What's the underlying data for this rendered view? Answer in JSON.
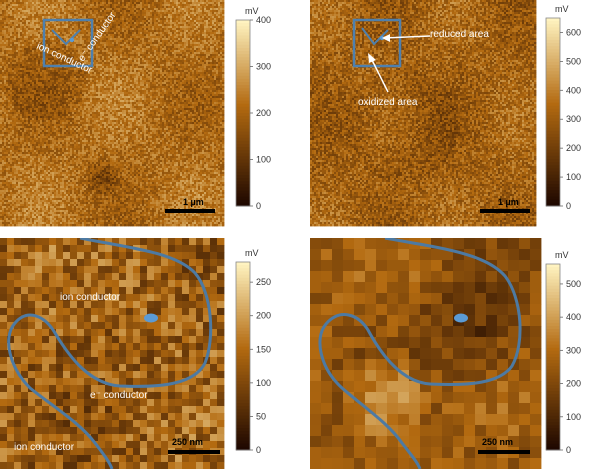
{
  "panels": [
    {
      "id": "top-left",
      "colorbar": {
        "unit": "mV",
        "ticks": [
          "400",
          "300",
          "200",
          "100",
          "0"
        ],
        "max": 400
      },
      "scale_bar": "1 µm",
      "annotations": [
        "ion conductor",
        "e⁻ conductor"
      ],
      "pixel_seed": 11
    },
    {
      "id": "top-right",
      "colorbar": {
        "unit": "mV",
        "ticks": [
          "600",
          "500",
          "400",
          "300",
          "200",
          "100",
          "0"
        ],
        "max": 650
      },
      "scale_bar": "1 µm",
      "annotations": [
        "reduced area",
        "oxidized area"
      ],
      "pixel_seed": 23
    },
    {
      "id": "bottom-left",
      "colorbar": {
        "unit": "mV",
        "ticks": [
          "250",
          "200",
          "150",
          "100",
          "50",
          "0"
        ],
        "max": 280
      },
      "scale_bar": "250 nm",
      "annotations": [
        "ion conductor",
        "e⁻ conductor",
        "ion conductor"
      ],
      "pixel_seed": 37
    },
    {
      "id": "bottom-right",
      "colorbar": {
        "unit": "mV",
        "ticks": [
          "500",
          "400",
          "300",
          "200",
          "100",
          "0"
        ],
        "max": 560
      },
      "scale_bar": "250 nm",
      "annotations": [],
      "pixel_seed": 53
    }
  ],
  "colors": {
    "map_dark": "#1a0500",
    "map_mid": "#b36a10",
    "map_bright": "#fff3c0",
    "boundary_line": "#4d7aa3",
    "box_outline": "#4f80ad",
    "marker": "#5b9bd5"
  }
}
